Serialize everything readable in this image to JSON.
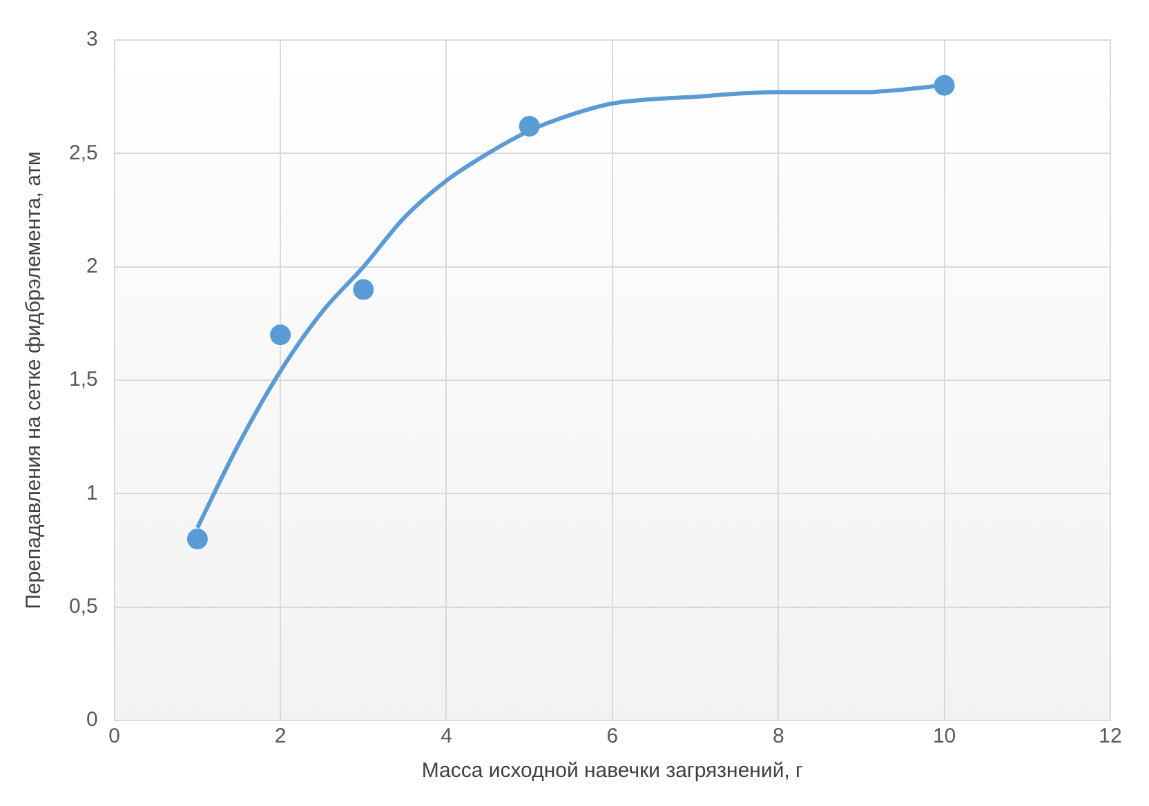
{
  "chart_data": {
    "type": "scatter",
    "xlabel": "Масса исходной навечки загрязнений, г",
    "ylabel": "Перепадавления на сетке фидбрэлемента, атм",
    "xlim": [
      0,
      12
    ],
    "xticks": [
      0,
      2,
      4,
      6,
      8,
      10,
      12
    ],
    "ylim": [
      0,
      3
    ],
    "yticks": [
      0,
      {
        "value": 0.5,
        "label": "0,5"
      },
      1,
      {
        "value": 1.5,
        "label": "1,5"
      },
      2,
      {
        "value": 2.5,
        "label": "2,5"
      },
      3
    ],
    "grid": true,
    "legend": false,
    "series": [
      {
        "type": "scatter",
        "color": "#5b9bd5",
        "marker": "circle",
        "x": [
          1,
          2,
          3,
          5,
          10
        ],
        "values": [
          0.8,
          1.7,
          1.9,
          2.62,
          2.8
        ]
      },
      {
        "type": "line",
        "color": "#5b9bd5",
        "marker": "none",
        "line_style": "solid",
        "x": [
          1,
          1.5,
          2,
          2.5,
          3,
          3.5,
          4,
          4.5,
          5,
          5.5,
          6,
          7,
          8,
          9,
          10
        ],
        "values": [
          0.85,
          1.22,
          1.54,
          1.8,
          2.0,
          2.22,
          2.38,
          2.5,
          2.6,
          2.67,
          2.72,
          2.75,
          2.77,
          2.77,
          2.8
        ]
      }
    ]
  }
}
